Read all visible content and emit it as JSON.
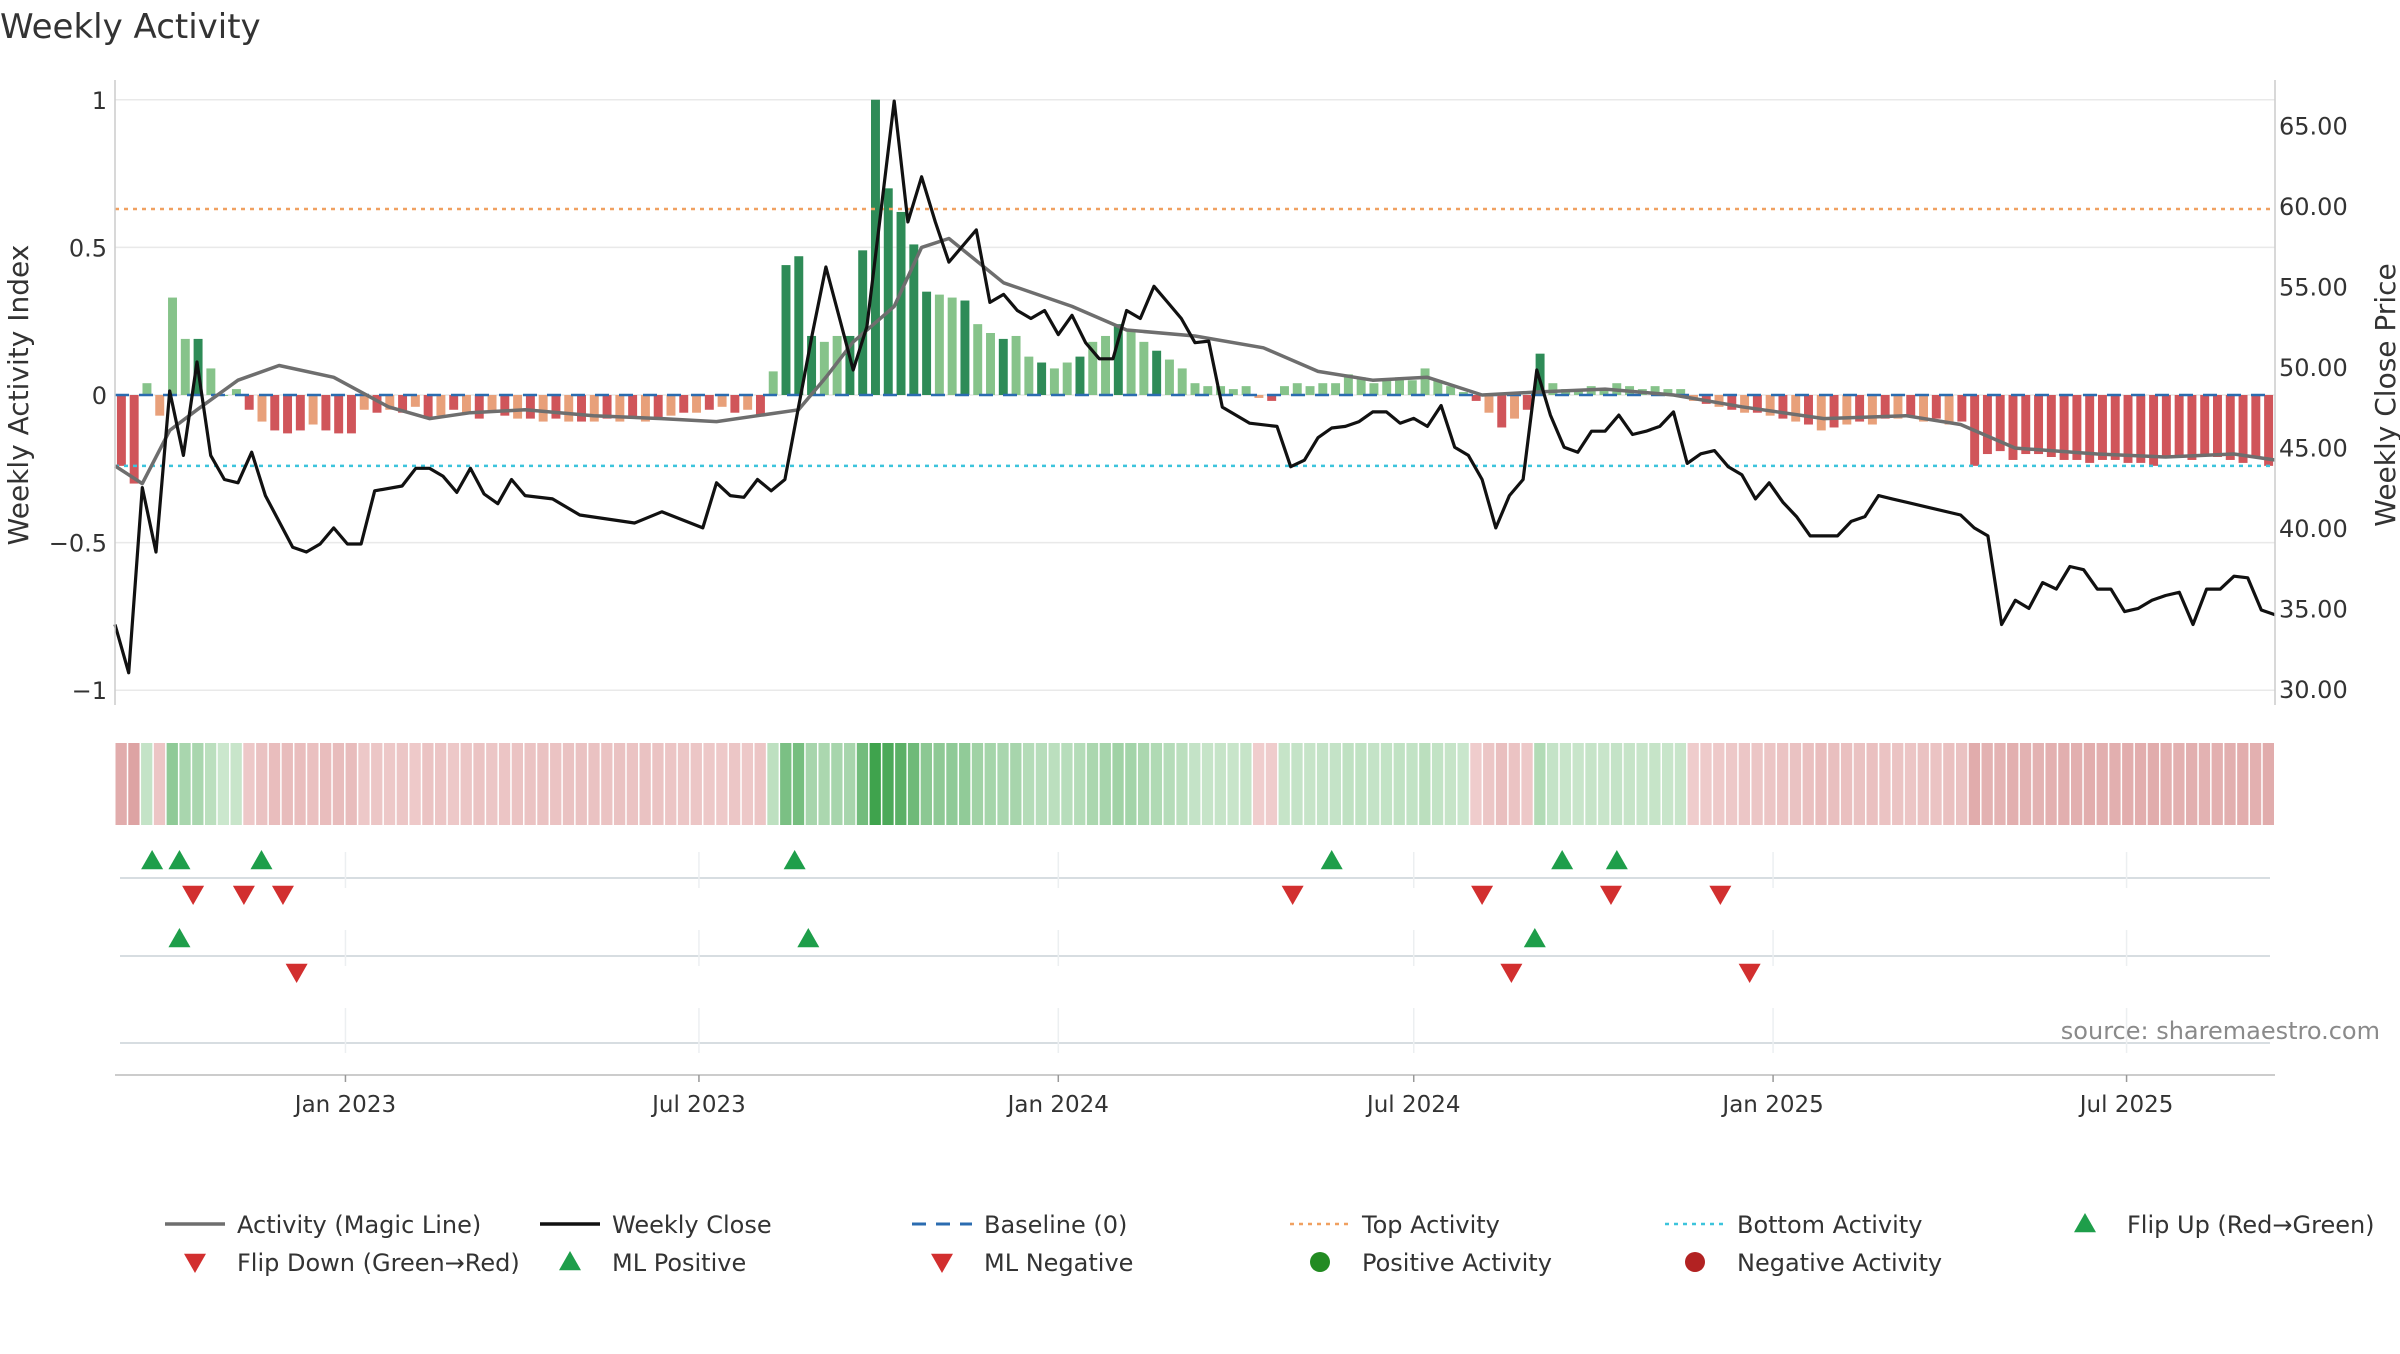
{
  "title": "Weekly Activity",
  "watermark": "source: sharemaestro.com",
  "colors": {
    "magic_line": "#6e6e6e",
    "close_line": "#111111",
    "baseline": "#2b6cb0",
    "top_line": "#f0a060",
    "bottom_line": "#3cc4dc",
    "bar_pos_strong": "#2e8b57",
    "bar_pos_light": "#86c38a",
    "bar_neg_strong": "#d0555a",
    "bar_neg_light": "#e8a07a",
    "flip_up": "#1e9e4a",
    "flip_down": "#d22f2f",
    "positive_dot": "#228b22",
    "negative_dot": "#b22222"
  },
  "chart_data": {
    "type": "bar+line",
    "title": "Weekly Activity",
    "ylabel": "Weekly Activity Index",
    "y2label": "Weekly Close Price",
    "ylim": [
      -1.05,
      1.05
    ],
    "y2lim": [
      29.0,
      67.5
    ],
    "yticks": [
      "1",
      "0.5",
      "0",
      "−0.5",
      "−1"
    ],
    "ytick_values": [
      1,
      0.5,
      0,
      -0.5,
      -1
    ],
    "y2ticks": [
      "65.00",
      "60.00",
      "55.00",
      "50.00",
      "45.00",
      "40.00",
      "35.00",
      "30.00"
    ],
    "y2tick_values": [
      65,
      60,
      55,
      50,
      45,
      40,
      35,
      30
    ],
    "xlim": [
      "2022-09-05",
      "2025-09-15"
    ],
    "xticks": [
      {
        "label": "Jan 2023",
        "date": "2023-01-01"
      },
      {
        "label": "Jul 2023",
        "date": "2023-07-01"
      },
      {
        "label": "Jan 2024",
        "date": "2024-01-01"
      },
      {
        "label": "Jul 2024",
        "date": "2024-07-01"
      },
      {
        "label": "Jan 2025",
        "date": "2025-01-01"
      },
      {
        "label": "Jul 2025",
        "date": "2025-07-01"
      }
    ],
    "top_activity": 0.63,
    "bottom_activity": -0.24,
    "baseline": 0,
    "activity_weekly": [
      -0.24,
      -0.3,
      0.04,
      -0.07,
      0.33,
      0.19,
      0.19,
      0.09,
      0.0,
      0.02,
      -0.05,
      -0.09,
      -0.12,
      -0.13,
      -0.12,
      -0.1,
      -0.12,
      -0.13,
      -0.13,
      -0.05,
      -0.06,
      -0.05,
      -0.06,
      -0.04,
      -0.08,
      -0.07,
      -0.05,
      -0.06,
      -0.08,
      -0.06,
      -0.07,
      -0.08,
      -0.08,
      -0.09,
      -0.08,
      -0.09,
      -0.09,
      -0.09,
      -0.08,
      -0.09,
      -0.08,
      -0.09,
      -0.08,
      -0.07,
      -0.06,
      -0.06,
      -0.05,
      -0.04,
      -0.06,
      -0.05,
      -0.07,
      0.08,
      0.44,
      0.47,
      0.2,
      0.18,
      0.2,
      0.2,
      0.49,
      1.0,
      0.7,
      0.62,
      0.51,
      0.35,
      0.34,
      0.33,
      0.32,
      0.24,
      0.21,
      0.19,
      0.2,
      0.13,
      0.11,
      0.09,
      0.11,
      0.13,
      0.18,
      0.2,
      0.24,
      0.22,
      0.18,
      0.15,
      0.12,
      0.09,
      0.04,
      0.03,
      0.03,
      0.02,
      0.03,
      -0.01,
      -0.02,
      0.03,
      0.04,
      0.03,
      0.04,
      0.04,
      0.07,
      0.06,
      0.04,
      0.05,
      0.06,
      0.05,
      0.09,
      0.05,
      0.03,
      0.01,
      -0.02,
      -0.06,
      -0.11,
      -0.08,
      -0.05,
      0.14,
      0.04,
      0.02,
      0.02,
      0.03,
      0.02,
      0.04,
      0.03,
      0.02,
      0.03,
      0.02,
      0.02,
      -0.02,
      -0.03,
      -0.04,
      -0.05,
      -0.06,
      -0.06,
      -0.07,
      -0.08,
      -0.09,
      -0.1,
      -0.12,
      -0.11,
      -0.1,
      -0.09,
      -0.1,
      -0.08,
      -0.08,
      -0.07,
      -0.09,
      -0.08,
      -0.1,
      -0.09,
      -0.24,
      -0.2,
      -0.19,
      -0.22,
      -0.2,
      -0.2,
      -0.21,
      -0.22,
      -0.22,
      -0.23,
      -0.22,
      -0.22,
      -0.23,
      -0.23,
      -0.24,
      -0.21,
      -0.21,
      -0.22,
      -0.2,
      -0.21,
      -0.22,
      -0.23,
      -0.21,
      -0.24
    ],
    "magic_line": [
      {
        "d": "2022-09-05",
        "v": -0.24
      },
      {
        "d": "2022-09-19",
        "v": -0.3
      },
      {
        "d": "2022-10-03",
        "v": -0.12
      },
      {
        "d": "2022-10-17",
        "v": -0.05
      },
      {
        "d": "2022-11-07",
        "v": 0.05
      },
      {
        "d": "2022-11-28",
        "v": 0.1
      },
      {
        "d": "2022-12-26",
        "v": 0.06
      },
      {
        "d": "2023-01-23",
        "v": -0.04
      },
      {
        "d": "2023-02-13",
        "v": -0.08
      },
      {
        "d": "2023-03-06",
        "v": -0.06
      },
      {
        "d": "2023-04-03",
        "v": -0.05
      },
      {
        "d": "2023-05-08",
        "v": -0.07
      },
      {
        "d": "2023-06-12",
        "v": -0.08
      },
      {
        "d": "2023-07-10",
        "v": -0.09
      },
      {
        "d": "2023-07-31",
        "v": -0.07
      },
      {
        "d": "2023-08-21",
        "v": -0.05
      },
      {
        "d": "2023-09-04",
        "v": 0.06
      },
      {
        "d": "2023-09-18",
        "v": 0.18
      },
      {
        "d": "2023-10-09",
        "v": 0.3
      },
      {
        "d": "2023-10-23",
        "v": 0.5
      },
      {
        "d": "2023-11-06",
        "v": 0.53
      },
      {
        "d": "2023-12-04",
        "v": 0.38
      },
      {
        "d": "2024-01-08",
        "v": 0.3
      },
      {
        "d": "2024-02-05",
        "v": 0.22
      },
      {
        "d": "2024-03-11",
        "v": 0.2
      },
      {
        "d": "2024-04-15",
        "v": 0.16
      },
      {
        "d": "2024-05-13",
        "v": 0.08
      },
      {
        "d": "2024-06-10",
        "v": 0.05
      },
      {
        "d": "2024-07-08",
        "v": 0.06
      },
      {
        "d": "2024-08-05",
        "v": 0.0
      },
      {
        "d": "2024-09-02",
        "v": 0.01
      },
      {
        "d": "2024-10-07",
        "v": 0.02
      },
      {
        "d": "2024-11-11",
        "v": 0.0
      },
      {
        "d": "2024-12-16",
        "v": -0.04
      },
      {
        "d": "2025-01-27",
        "v": -0.08
      },
      {
        "d": "2025-03-10",
        "v": -0.07
      },
      {
        "d": "2025-04-07",
        "v": -0.1
      },
      {
        "d": "2025-05-05",
        "v": -0.18
      },
      {
        "d": "2025-06-16",
        "v": -0.2
      },
      {
        "d": "2025-07-21",
        "v": -0.21
      },
      {
        "d": "2025-08-25",
        "v": -0.2
      },
      {
        "d": "2025-09-15",
        "v": -0.22
      }
    ],
    "weekly_close": [
      {
        "d": "2022-09-05",
        "v": 34.0
      },
      {
        "d": "2022-09-12",
        "v": 31.0
      },
      {
        "d": "2022-09-19",
        "v": 42.5
      },
      {
        "d": "2022-09-26",
        "v": 38.5
      },
      {
        "d": "2022-10-03",
        "v": 48.5
      },
      {
        "d": "2022-10-10",
        "v": 44.5
      },
      {
        "d": "2022-10-17",
        "v": 50.3
      },
      {
        "d": "2022-10-24",
        "v": 44.5
      },
      {
        "d": "2022-10-31",
        "v": 43.0
      },
      {
        "d": "2022-11-07",
        "v": 42.8
      },
      {
        "d": "2022-11-14",
        "v": 44.7
      },
      {
        "d": "2022-11-21",
        "v": 42.0
      },
      {
        "d": "2022-12-05",
        "v": 38.8
      },
      {
        "d": "2022-12-12",
        "v": 38.5
      },
      {
        "d": "2022-12-19",
        "v": 39.0
      },
      {
        "d": "2022-12-26",
        "v": 40.0
      },
      {
        "d": "2023-01-02",
        "v": 39.0
      },
      {
        "d": "2023-01-09",
        "v": 39.0
      },
      {
        "d": "2023-01-16",
        "v": 42.3
      },
      {
        "d": "2023-01-30",
        "v": 42.6
      },
      {
        "d": "2023-02-06",
        "v": 43.7
      },
      {
        "d": "2023-02-13",
        "v": 43.7
      },
      {
        "d": "2023-02-20",
        "v": 43.2
      },
      {
        "d": "2023-02-27",
        "v": 42.2
      },
      {
        "d": "2023-03-06",
        "v": 43.7
      },
      {
        "d": "2023-03-13",
        "v": 42.1
      },
      {
        "d": "2023-03-20",
        "v": 41.5
      },
      {
        "d": "2023-03-27",
        "v": 43.0
      },
      {
        "d": "2023-04-03",
        "v": 42.0
      },
      {
        "d": "2023-04-17",
        "v": 41.8
      },
      {
        "d": "2023-05-01",
        "v": 40.8
      },
      {
        "d": "2023-05-29",
        "v": 40.3
      },
      {
        "d": "2023-06-12",
        "v": 41.0
      },
      {
        "d": "2023-07-03",
        "v": 40.0
      },
      {
        "d": "2023-07-10",
        "v": 42.8
      },
      {
        "d": "2023-07-17",
        "v": 42.0
      },
      {
        "d": "2023-07-24",
        "v": 41.9
      },
      {
        "d": "2023-07-31",
        "v": 43.0
      },
      {
        "d": "2023-08-07",
        "v": 42.3
      },
      {
        "d": "2023-08-14",
        "v": 43.0
      },
      {
        "d": "2023-08-21",
        "v": 47.5
      },
      {
        "d": "2023-08-28",
        "v": 52.0
      },
      {
        "d": "2023-09-04",
        "v": 56.2
      },
      {
        "d": "2023-09-11",
        "v": 53.0
      },
      {
        "d": "2023-09-18",
        "v": 49.8
      },
      {
        "d": "2023-09-25",
        "v": 52.5
      },
      {
        "d": "2023-10-02",
        "v": 59.5
      },
      {
        "d": "2023-10-09",
        "v": 66.5
      },
      {
        "d": "2023-10-16",
        "v": 59.0
      },
      {
        "d": "2023-10-23",
        "v": 61.8
      },
      {
        "d": "2023-10-30",
        "v": 59.0
      },
      {
        "d": "2023-11-06",
        "v": 56.5
      },
      {
        "d": "2023-11-13",
        "v": 57.5
      },
      {
        "d": "2023-11-20",
        "v": 58.5
      },
      {
        "d": "2023-11-27",
        "v": 54.0
      },
      {
        "d": "2023-12-04",
        "v": 54.5
      },
      {
        "d": "2023-12-11",
        "v": 53.5
      },
      {
        "d": "2023-12-18",
        "v": 53.0
      },
      {
        "d": "2023-12-25",
        "v": 53.5
      },
      {
        "d": "2024-01-01",
        "v": 52.0
      },
      {
        "d": "2024-01-08",
        "v": 53.2
      },
      {
        "d": "2024-01-15",
        "v": 51.5
      },
      {
        "d": "2024-01-22",
        "v": 50.5
      },
      {
        "d": "2024-01-29",
        "v": 50.5
      },
      {
        "d": "2024-02-05",
        "v": 53.5
      },
      {
        "d": "2024-02-12",
        "v": 53.0
      },
      {
        "d": "2024-02-19",
        "v": 55.0
      },
      {
        "d": "2024-02-26",
        "v": 54.0
      },
      {
        "d": "2024-03-04",
        "v": 53.0
      },
      {
        "d": "2024-03-11",
        "v": 51.5
      },
      {
        "d": "2024-03-18",
        "v": 51.6
      },
      {
        "d": "2024-03-25",
        "v": 47.5
      },
      {
        "d": "2024-04-08",
        "v": 46.5
      },
      {
        "d": "2024-04-22",
        "v": 46.3
      },
      {
        "d": "2024-04-29",
        "v": 43.8
      },
      {
        "d": "2024-05-06",
        "v": 44.2
      },
      {
        "d": "2024-05-13",
        "v": 45.6
      },
      {
        "d": "2024-05-20",
        "v": 46.2
      },
      {
        "d": "2024-05-27",
        "v": 46.3
      },
      {
        "d": "2024-06-03",
        "v": 46.6
      },
      {
        "d": "2024-06-10",
        "v": 47.2
      },
      {
        "d": "2024-06-17",
        "v": 47.2
      },
      {
        "d": "2024-06-24",
        "v": 46.5
      },
      {
        "d": "2024-07-01",
        "v": 46.8
      },
      {
        "d": "2024-07-08",
        "v": 46.3
      },
      {
        "d": "2024-07-15",
        "v": 47.6
      },
      {
        "d": "2024-07-22",
        "v": 45.0
      },
      {
        "d": "2024-07-29",
        "v": 44.5
      },
      {
        "d": "2024-08-05",
        "v": 43.0
      },
      {
        "d": "2024-08-12",
        "v": 40.0
      },
      {
        "d": "2024-08-19",
        "v": 42.0
      },
      {
        "d": "2024-08-26",
        "v": 43.0
      },
      {
        "d": "2024-09-02",
        "v": 49.8
      },
      {
        "d": "2024-09-09",
        "v": 47.0
      },
      {
        "d": "2024-09-16",
        "v": 45.0
      },
      {
        "d": "2024-09-23",
        "v": 44.7
      },
      {
        "d": "2024-09-30",
        "v": 46.0
      },
      {
        "d": "2024-10-07",
        "v": 46.0
      },
      {
        "d": "2024-10-14",
        "v": 47.0
      },
      {
        "d": "2024-10-21",
        "v": 45.8
      },
      {
        "d": "2024-10-28",
        "v": 46.0
      },
      {
        "d": "2024-11-04",
        "v": 46.3
      },
      {
        "d": "2024-11-11",
        "v": 47.2
      },
      {
        "d": "2024-11-18",
        "v": 44.0
      },
      {
        "d": "2024-11-25",
        "v": 44.6
      },
      {
        "d": "2024-12-02",
        "v": 44.8
      },
      {
        "d": "2024-12-09",
        "v": 43.8
      },
      {
        "d": "2024-12-16",
        "v": 43.3
      },
      {
        "d": "2024-12-23",
        "v": 41.8
      },
      {
        "d": "2024-12-30",
        "v": 42.8
      },
      {
        "d": "2025-01-06",
        "v": 41.6
      },
      {
        "d": "2025-01-13",
        "v": 40.7
      },
      {
        "d": "2025-01-20",
        "v": 39.5
      },
      {
        "d": "2025-01-27",
        "v": 39.5
      },
      {
        "d": "2025-02-03",
        "v": 39.5
      },
      {
        "d": "2025-02-10",
        "v": 40.4
      },
      {
        "d": "2025-02-17",
        "v": 40.7
      },
      {
        "d": "2025-02-24",
        "v": 42.0
      },
      {
        "d": "2025-03-03",
        "v": 41.8
      },
      {
        "d": "2025-04-07",
        "v": 40.8
      },
      {
        "d": "2025-04-14",
        "v": 40.0
      },
      {
        "d": "2025-04-21",
        "v": 39.5
      },
      {
        "d": "2025-04-28",
        "v": 34.0
      },
      {
        "d": "2025-05-05",
        "v": 35.5
      },
      {
        "d": "2025-05-12",
        "v": 35.0
      },
      {
        "d": "2025-05-19",
        "v": 36.6
      },
      {
        "d": "2025-05-26",
        "v": 36.2
      },
      {
        "d": "2025-06-02",
        "v": 37.6
      },
      {
        "d": "2025-06-09",
        "v": 37.4
      },
      {
        "d": "2025-06-16",
        "v": 36.2
      },
      {
        "d": "2025-06-23",
        "v": 36.2
      },
      {
        "d": "2025-06-30",
        "v": 34.8
      },
      {
        "d": "2025-07-07",
        "v": 35.0
      },
      {
        "d": "2025-07-14",
        "v": 35.5
      },
      {
        "d": "2025-07-21",
        "v": 35.8
      },
      {
        "d": "2025-07-28",
        "v": 36.0
      },
      {
        "d": "2025-08-04",
        "v": 34.0
      },
      {
        "d": "2025-08-11",
        "v": 36.2
      },
      {
        "d": "2025-08-18",
        "v": 36.2
      },
      {
        "d": "2025-08-25",
        "v": 37.0
      },
      {
        "d": "2025-09-01",
        "v": 36.9
      },
      {
        "d": "2025-09-08",
        "v": 34.9
      },
      {
        "d": "2025-09-15",
        "v": 34.6
      }
    ],
    "flip_up": [
      "2022-09-24",
      "2022-10-08",
      "2022-11-19",
      "2023-08-19",
      "2024-05-20",
      "2024-09-15",
      "2024-10-13"
    ],
    "flip_down": [
      "2022-10-15",
      "2022-11-10",
      "2022-11-30",
      "2024-04-30",
      "2024-08-05",
      "2024-10-10",
      "2024-12-05"
    ],
    "ml_positive": [
      "2022-10-08",
      "2023-08-26",
      "2024-09-01"
    ],
    "ml_negative": [
      "2022-12-07",
      "2024-08-20",
      "2024-12-20"
    ],
    "positive_activity": [],
    "negative_activity": [],
    "legend_placement": "bottom"
  },
  "legend": [
    {
      "label": "Activity (Magic Line)",
      "kind": "line-solid-gray"
    },
    {
      "label": "Weekly Close",
      "kind": "line-solid-black"
    },
    {
      "label": "Baseline (0)",
      "kind": "line-dashed-blue"
    },
    {
      "label": "Top Activity",
      "kind": "line-dotted-orange"
    },
    {
      "label": "Bottom Activity",
      "kind": "line-dotted-cyan"
    },
    {
      "label": "Flip Up (Red→Green)",
      "kind": "triangle-up-green"
    },
    {
      "label": "Flip Down (Green→Red)",
      "kind": "triangle-down-red"
    },
    {
      "label": "ML Positive",
      "kind": "triangle-up-green"
    },
    {
      "label": "ML Negative",
      "kind": "triangle-down-red"
    },
    {
      "label": "Positive Activity",
      "kind": "dot-green"
    },
    {
      "label": "Negative Activity",
      "kind": "dot-red"
    }
  ]
}
